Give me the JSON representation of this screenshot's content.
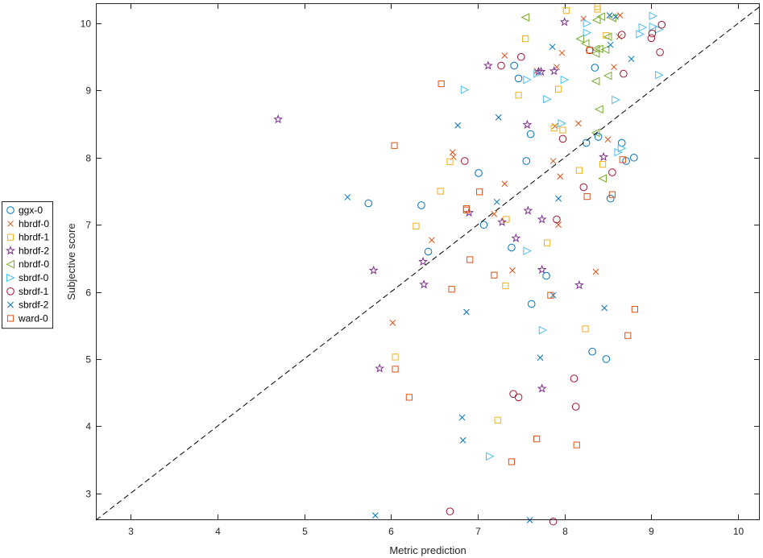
{
  "chart_data": {
    "type": "scatter",
    "title": "",
    "xlabel": "Metric prediction",
    "ylabel": "Subjective score",
    "xlim": [
      2.6,
      10.25
    ],
    "ylim": [
      2.6,
      10.3
    ],
    "xticks": [
      3,
      4,
      5,
      6,
      7,
      8,
      9,
      10
    ],
    "yticks": [
      3,
      4,
      5,
      6,
      7,
      8,
      9,
      10
    ],
    "grid": false,
    "legend_position": "outside-left",
    "reference_line": "y = x (dashed)",
    "series": [
      {
        "name": "ggx-0",
        "marker": "circle",
        "color": "#0072BD",
        "points": [
          [
            5.74,
            7.32
          ],
          [
            6.35,
            7.29
          ],
          [
            6.43,
            6.6
          ],
          [
            7.01,
            7.77
          ],
          [
            7.07,
            7.0
          ],
          [
            7.42,
            9.37
          ],
          [
            7.47,
            9.18
          ],
          [
            7.56,
            7.95
          ],
          [
            7.39,
            6.66
          ],
          [
            7.61,
            8.35
          ],
          [
            7.62,
            5.82
          ],
          [
            7.79,
            6.24
          ],
          [
            8.25,
            8.22
          ],
          [
            8.32,
            5.11
          ],
          [
            8.35,
            9.34
          ],
          [
            8.39,
            8.31
          ],
          [
            8.48,
            5.0
          ],
          [
            8.53,
            7.39
          ],
          [
            8.66,
            8.22
          ],
          [
            8.71,
            7.95
          ],
          [
            8.8,
            8.0
          ]
        ]
      },
      {
        "name": "hbrdf-0",
        "marker": "x",
        "color": "#D95319",
        "points": [
          [
            6.02,
            5.54
          ],
          [
            6.47,
            6.77
          ],
          [
            6.71,
            8.08
          ],
          [
            6.72,
            8.01
          ],
          [
            7.19,
            7.16
          ],
          [
            7.31,
            7.61
          ],
          [
            7.31,
            9.52
          ],
          [
            7.4,
            6.32
          ],
          [
            7.68,
            9.29
          ],
          [
            7.87,
            7.95
          ],
          [
            7.89,
            8.47
          ],
          [
            7.91,
            9.35
          ],
          [
            7.93,
            7.0
          ],
          [
            7.95,
            7.72
          ],
          [
            7.97,
            9.56
          ],
          [
            8.16,
            8.51
          ],
          [
            8.22,
            10.07
          ],
          [
            8.36,
            6.3
          ],
          [
            8.5,
            8.27
          ],
          [
            8.57,
            9.35
          ],
          [
            8.63,
            9.8
          ],
          [
            8.64,
            10.12
          ]
        ]
      },
      {
        "name": "hbrdf-1",
        "marker": "square",
        "color": "#EDB120",
        "points": [
          [
            6.05,
            5.03
          ],
          [
            6.29,
            6.98
          ],
          [
            6.57,
            7.5
          ],
          [
            6.68,
            7.94
          ],
          [
            7.23,
            4.09
          ],
          [
            7.32,
            6.09
          ],
          [
            7.33,
            7.08
          ],
          [
            7.47,
            8.93
          ],
          [
            7.55,
            9.77
          ],
          [
            7.8,
            6.73
          ],
          [
            7.88,
            8.44
          ],
          [
            7.93,
            9.02
          ],
          [
            7.98,
            8.41
          ],
          [
            8.02,
            10.19
          ],
          [
            8.17,
            7.81
          ],
          [
            8.24,
            5.45
          ],
          [
            8.38,
            10.21
          ],
          [
            8.38,
            10.25
          ],
          [
            8.44,
            7.9
          ],
          [
            8.48,
            9.82
          ]
        ]
      },
      {
        "name": "hbrdf-2",
        "marker": "star",
        "color": "#7E2F8E",
        "points": [
          [
            4.7,
            8.57
          ],
          [
            5.8,
            6.32
          ],
          [
            5.87,
            4.86
          ],
          [
            6.37,
            6.45
          ],
          [
            6.38,
            6.11
          ],
          [
            6.9,
            7.18
          ],
          [
            7.12,
            9.37
          ],
          [
            7.28,
            7.04
          ],
          [
            7.44,
            6.8
          ],
          [
            7.57,
            8.49
          ],
          [
            7.58,
            7.21
          ],
          [
            7.7,
            9.28
          ],
          [
            7.73,
            9.28
          ],
          [
            7.74,
            7.08
          ],
          [
            7.74,
            6.33
          ],
          [
            7.74,
            4.56
          ],
          [
            7.88,
            9.29
          ],
          [
            8.0,
            10.02
          ],
          [
            8.17,
            6.1
          ],
          [
            8.45,
            8.01
          ]
        ]
      },
      {
        "name": "nbrdf-0",
        "marker": "triangle-left",
        "color": "#77AC30",
        "points": [
          [
            7.55,
            10.09
          ],
          [
            8.18,
            9.77
          ],
          [
            8.24,
            9.7
          ],
          [
            8.36,
            9.55
          ],
          [
            8.36,
            9.62
          ],
          [
            8.36,
            9.14
          ],
          [
            8.36,
            8.37
          ],
          [
            8.37,
            10.05
          ],
          [
            8.4,
            9.62
          ],
          [
            8.4,
            8.72
          ],
          [
            8.42,
            10.1
          ],
          [
            8.44,
            7.69
          ],
          [
            8.47,
            9.61
          ],
          [
            8.5,
            9.22
          ],
          [
            8.5,
            9.8
          ],
          [
            8.55,
            10.08
          ]
        ]
      },
      {
        "name": "sbrdf-0",
        "marker": "triangle-right",
        "color": "#4DBEEE",
        "points": [
          [
            6.85,
            9.01
          ],
          [
            7.14,
            3.55
          ],
          [
            7.57,
            6.61
          ],
          [
            7.57,
            9.16
          ],
          [
            7.69,
            9.25
          ],
          [
            7.75,
            5.43
          ],
          [
            7.8,
            8.87
          ],
          [
            7.97,
            8.51
          ],
          [
            8.0,
            9.16
          ],
          [
            8.26,
            9.86
          ],
          [
            8.26,
            10.0
          ],
          [
            8.59,
            8.86
          ],
          [
            8.62,
            8.08
          ],
          [
            8.66,
            8.14
          ],
          [
            8.87,
            9.84
          ],
          [
            8.9,
            9.94
          ],
          [
            9.02,
            10.11
          ],
          [
            9.02,
            9.95
          ],
          [
            9.09,
            9.23
          ],
          [
            9.09,
            9.91
          ]
        ]
      },
      {
        "name": "sbrdf-1",
        "marker": "circle",
        "color": "#A2142F",
        "points": [
          [
            6.68,
            2.73
          ],
          [
            6.85,
            7.95
          ],
          [
            7.27,
            9.37
          ],
          [
            7.41,
            4.48
          ],
          [
            7.47,
            4.43
          ],
          [
            7.5,
            9.5
          ],
          [
            7.87,
            2.58
          ],
          [
            7.91,
            7.08
          ],
          [
            7.98,
            8.28
          ],
          [
            8.11,
            4.71
          ],
          [
            8.13,
            4.29
          ],
          [
            8.22,
            7.56
          ],
          [
            8.29,
            9.6
          ],
          [
            8.55,
            7.78
          ],
          [
            8.66,
            9.83
          ],
          [
            8.68,
            9.25
          ],
          [
            9.0,
            9.78
          ],
          [
            9.01,
            9.85
          ],
          [
            9.1,
            9.57
          ],
          [
            9.12,
            9.98
          ]
        ]
      },
      {
        "name": "sbrdf-2",
        "marker": "x",
        "color": "#0072BD",
        "points": [
          [
            5.5,
            7.41
          ],
          [
            5.82,
            2.67
          ],
          [
            6.77,
            8.48
          ],
          [
            6.82,
            4.13
          ],
          [
            6.83,
            3.79
          ],
          [
            6.87,
            5.7
          ],
          [
            7.22,
            7.34
          ],
          [
            7.24,
            8.6
          ],
          [
            7.6,
            2.6
          ],
          [
            7.72,
            5.02
          ],
          [
            7.86,
            9.65
          ],
          [
            7.87,
            5.95
          ],
          [
            7.93,
            7.39
          ],
          [
            8.46,
            5.76
          ],
          [
            8.52,
            10.12
          ],
          [
            8.53,
            9.68
          ],
          [
            8.59,
            10.1
          ],
          [
            8.77,
            9.47
          ]
        ]
      },
      {
        "name": "ward-0",
        "marker": "square",
        "color": "#D95319",
        "points": [
          [
            6.04,
            8.18
          ],
          [
            6.05,
            4.85
          ],
          [
            6.21,
            4.43
          ],
          [
            6.58,
            9.1
          ],
          [
            6.7,
            6.04
          ],
          [
            6.87,
            7.24
          ],
          [
            6.87,
            7.22
          ],
          [
            6.91,
            6.48
          ],
          [
            7.02,
            7.49
          ],
          [
            7.19,
            6.25
          ],
          [
            7.39,
            3.47
          ],
          [
            7.68,
            3.81
          ],
          [
            7.84,
            5.95
          ],
          [
            8.14,
            3.72
          ],
          [
            8.26,
            7.42
          ],
          [
            8.29,
            9.6
          ],
          [
            8.55,
            7.45
          ],
          [
            8.67,
            7.97
          ],
          [
            8.73,
            5.35
          ],
          [
            8.81,
            5.74
          ]
        ]
      }
    ]
  }
}
